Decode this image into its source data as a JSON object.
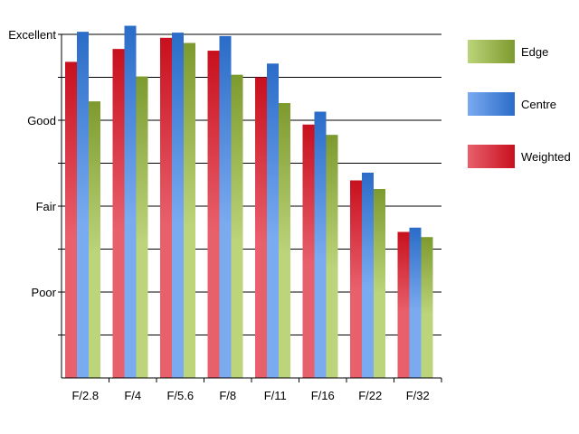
{
  "chart_data": {
    "type": "bar",
    "title": "",
    "xlabel": "",
    "ylabel": "",
    "categories": [
      "F/2.8",
      "F/4",
      "F/5.6",
      "F/8",
      "F/11",
      "F/16",
      "F/22",
      "F/32"
    ],
    "y_tick_labels": [
      {
        "value": 1,
        "label": "Poor"
      },
      {
        "value": 2,
        "label": "Fair"
      },
      {
        "value": 3,
        "label": "Good"
      },
      {
        "value": 4,
        "label": "Excellent"
      }
    ],
    "ylim": [
      0,
      4
    ],
    "grid": true,
    "legend_position": "right",
    "series": [
      {
        "name": "Weighted",
        "color": "#c8101e",
        "values": [
          3.68,
          3.83,
          3.96,
          3.81,
          3.5,
          2.95,
          2.3,
          1.7
        ]
      },
      {
        "name": "Centre",
        "color": "#2a6cc8",
        "values": [
          4.03,
          4.1,
          4.02,
          3.98,
          3.66,
          3.1,
          2.39,
          1.75
        ]
      },
      {
        "name": "Edge",
        "color": "#7d9a2e",
        "values": [
          3.22,
          3.51,
          3.9,
          3.53,
          3.2,
          2.83,
          2.2,
          1.64
        ]
      }
    ],
    "legend_order": [
      "Edge",
      "Centre",
      "Weighted"
    ]
  }
}
